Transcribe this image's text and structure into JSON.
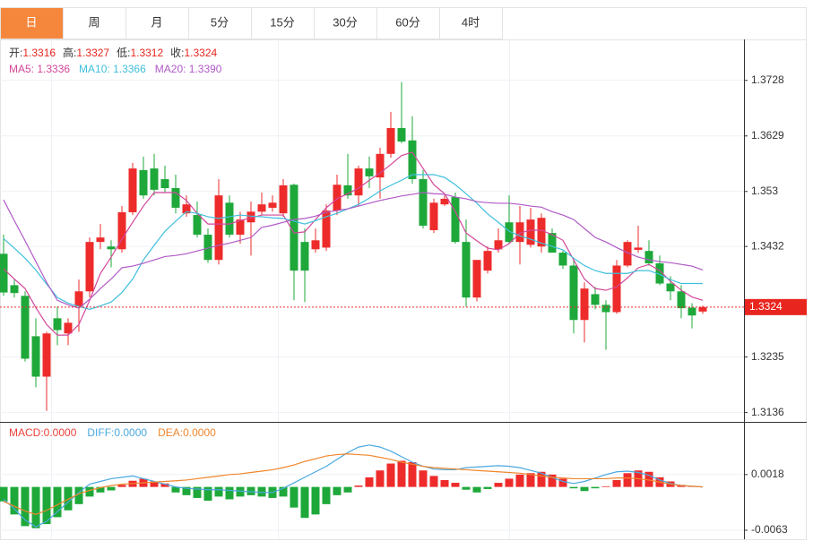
{
  "tabs": {
    "items": [
      "日",
      "周",
      "月",
      "5分",
      "15分",
      "30分",
      "60分",
      "4时"
    ],
    "active": 0
  },
  "chart_data": [
    {
      "type": "candlestick",
      "info": [
        {
          "label": "开:",
          "value": "1.3316"
        },
        {
          "label": "高:",
          "value": "1.3327"
        },
        {
          "label": "低:",
          "value": "1.3312"
        },
        {
          "label": "收:",
          "value": "1.3324"
        }
      ],
      "up_color": "#ee2b2b",
      "down_color": "#1ea83a",
      "open": [
        1.3419,
        1.3363,
        1.3344,
        1.3272,
        1.32,
        1.3304,
        1.3277,
        1.3325,
        1.3352,
        1.344,
        1.3432,
        1.3427,
        1.3493,
        1.3568,
        1.3571,
        1.3552,
        1.3536,
        1.3491,
        1.3488,
        1.3453,
        1.3408,
        1.351,
        1.3453,
        1.3475,
        1.3494,
        1.3501,
        1.3491,
        1.3542,
        1.344,
        1.3427,
        1.343,
        1.3496,
        1.3541,
        1.3523,
        1.3571,
        1.3555,
        1.3597,
        1.3643,
        1.3621,
        1.3552,
        1.3461,
        1.3507,
        1.352,
        1.344,
        1.3341,
        1.3389,
        1.3427,
        1.3475,
        1.344,
        1.3435,
        1.3432,
        1.3456,
        1.3421,
        1.3398,
        1.3301,
        1.3347,
        1.3328,
        1.3315,
        1.3398,
        1.3426,
        1.3424,
        1.3402,
        1.3366,
        1.3352,
        1.3323,
        1.3316
      ],
      "high": [
        1.3453,
        1.3373,
        1.3352,
        1.3304,
        1.328,
        1.3325,
        1.3304,
        1.3373,
        1.3448,
        1.3472,
        1.3443,
        1.3504,
        1.3581,
        1.3592,
        1.3597,
        1.3576,
        1.356,
        1.3523,
        1.3512,
        1.3464,
        1.3552,
        1.3523,
        1.3494,
        1.3512,
        1.3528,
        1.3523,
        1.3552,
        1.3544,
        1.3464,
        1.3464,
        1.3507,
        1.356,
        1.3597,
        1.3576,
        1.3592,
        1.3608,
        1.3672,
        1.3725,
        1.3664,
        1.3568,
        1.3517,
        1.3523,
        1.3528,
        1.348,
        1.3408,
        1.3432,
        1.3464,
        1.3523,
        1.3504,
        1.3501,
        1.3491,
        1.3464,
        1.3424,
        1.3408,
        1.3368,
        1.336,
        1.3336,
        1.3408,
        1.3443,
        1.3469,
        1.3443,
        1.3416,
        1.3379,
        1.3363,
        1.3331,
        1.3327
      ],
      "low": [
        1.3344,
        1.3341,
        1.3227,
        1.3181,
        1.3139,
        1.3256,
        1.3256,
        1.328,
        1.3341,
        1.3427,
        1.3395,
        1.3421,
        1.3488,
        1.3517,
        1.3523,
        1.3528,
        1.3491,
        1.3485,
        1.3448,
        1.3403,
        1.34,
        1.3448,
        1.3437,
        1.3416,
        1.3488,
        1.3494,
        1.3485,
        1.3336,
        1.3333,
        1.3421,
        1.3424,
        1.3488,
        1.3517,
        1.3504,
        1.3536,
        1.3517,
        1.359,
        1.3616,
        1.3544,
        1.3464,
        1.3456,
        1.3504,
        1.3437,
        1.3325,
        1.3334,
        1.3384,
        1.3421,
        1.3437,
        1.34,
        1.343,
        1.3421,
        1.3421,
        1.3392,
        1.3277,
        1.3261,
        1.332,
        1.3248,
        1.3312,
        1.3395,
        1.3421,
        1.3398,
        1.3363,
        1.3336,
        1.3304,
        1.3286,
        1.3312
      ],
      "close": [
        1.335,
        1.3349,
        1.3232,
        1.32,
        1.3277,
        1.3283,
        1.3296,
        1.3352,
        1.344,
        1.3448,
        1.3427,
        1.3493,
        1.3571,
        1.3523,
        1.3533,
        1.3536,
        1.3501,
        1.3507,
        1.3453,
        1.3408,
        1.3523,
        1.3453,
        1.348,
        1.3494,
        1.3507,
        1.351,
        1.3541,
        1.3389,
        1.3389,
        1.3443,
        1.3496,
        1.3542,
        1.3523,
        1.3571,
        1.3557,
        1.3597,
        1.3643,
        1.3619,
        1.3552,
        1.3469,
        1.351,
        1.3517,
        1.344,
        1.3341,
        1.3408,
        1.3424,
        1.3443,
        1.344,
        1.3475,
        1.348,
        1.3483,
        1.3421,
        1.3398,
        1.3301,
        1.3357,
        1.3328,
        1.3315,
        1.3398,
        1.344,
        1.343,
        1.3402,
        1.3366,
        1.3352,
        1.3322,
        1.3309,
        1.3324
      ],
      "series": [
        {
          "label": "MA5: 1.3336",
          "color": "#d2479a",
          "values": [
            1.3392,
            1.3374,
            1.3357,
            1.3323,
            1.3293,
            1.3274,
            1.3274,
            1.3293,
            1.3336,
            1.3384,
            1.3413,
            1.3445,
            1.3475,
            1.3504,
            1.3528,
            1.3528,
            1.3528,
            1.3514,
            1.3491,
            1.3472,
            1.3472,
            1.3472,
            1.3478,
            1.3483,
            1.3488,
            1.3488,
            1.3488,
            1.3456,
            1.3458,
            1.348,
            1.3501,
            1.3517,
            1.3526,
            1.3536,
            1.355,
            1.3563,
            1.3578,
            1.3594,
            1.36,
            1.3571,
            1.3542,
            1.3526,
            1.3494,
            1.3456,
            1.3442,
            1.3429,
            1.3426,
            1.3437,
            1.3456,
            1.3461,
            1.3461,
            1.3453,
            1.3443,
            1.3408,
            1.3374,
            1.3357,
            1.3354,
            1.336,
            1.3376,
            1.3394,
            1.34,
            1.3389,
            1.337,
            1.3354,
            1.3342,
            1.3336
          ]
        },
        {
          "label": "MA10: 1.3366",
          "color": "#3fbfdc",
          "values": [
            1.3446,
            1.3429,
            1.3411,
            1.339,
            1.3365,
            1.3341,
            1.3331,
            1.3325,
            1.332,
            1.3326,
            1.3333,
            1.335,
            1.3374,
            1.3408,
            1.3434,
            1.3459,
            1.3477,
            1.3494,
            1.3491,
            1.3485,
            1.3482,
            1.3485,
            1.3488,
            1.3486,
            1.3485,
            1.3483,
            1.3482,
            1.3477,
            1.3472,
            1.3478,
            1.3485,
            1.3491,
            1.3499,
            1.3507,
            1.3518,
            1.3531,
            1.3541,
            1.355,
            1.356,
            1.356,
            1.356,
            1.3555,
            1.3542,
            1.3526,
            1.3509,
            1.349,
            1.3475,
            1.3459,
            1.3451,
            1.3445,
            1.3438,
            1.3432,
            1.3426,
            1.3411,
            1.3398,
            1.3389,
            1.3384,
            1.3384,
            1.3384,
            1.3389,
            1.3389,
            1.3382,
            1.3373,
            1.3366,
            1.3366,
            1.3366
          ]
        },
        {
          "label": "MA20: 1.3390",
          "color": "#b05ac6",
          "values": [
            1.3515,
            1.3478,
            1.3442,
            1.3405,
            1.3368,
            1.3336,
            1.3328,
            1.3322,
            1.3338,
            1.3357,
            1.3374,
            1.3394,
            1.3397,
            1.3402,
            1.3408,
            1.3414,
            1.3416,
            1.3419,
            1.3424,
            1.3429,
            1.3434,
            1.3438,
            1.3443,
            1.3448,
            1.3466,
            1.347,
            1.3475,
            1.348,
            1.3482,
            1.3486,
            1.3493,
            1.3496,
            1.3499,
            1.3504,
            1.3509,
            1.3514,
            1.3518,
            1.3522,
            1.3525,
            1.3528,
            1.3526,
            1.3525,
            1.352,
            1.3517,
            1.3512,
            1.351,
            1.3509,
            1.3509,
            1.3507,
            1.3504,
            1.3502,
            1.3494,
            1.3488,
            1.348,
            1.3464,
            1.3448,
            1.344,
            1.343,
            1.3421,
            1.3413,
            1.3408,
            1.3405,
            1.3403,
            1.34,
            1.3397,
            1.339
          ]
        }
      ],
      "ylim": [
        1.3121,
        1.3801
      ],
      "yticks": [
        1.3136,
        1.3235,
        1.3432,
        1.353,
        1.3629,
        1.3728
      ],
      "grid": true
    },
    {
      "type": "macd",
      "legend": [
        {
          "label": "MACD:0.0000",
          "color": "#e8413a"
        },
        {
          "label": "DIFF:0.0000",
          "color": "#4aa8e0"
        },
        {
          "label": "DEA:0.0000",
          "color": "#f0862c"
        }
      ],
      "values": [
        -0.0021,
        -0.004,
        -0.0057,
        -0.006,
        -0.0054,
        -0.0044,
        -0.0034,
        -0.0025,
        -0.0014,
        -0.0008,
        -0.0005,
        0.0003,
        0.0009,
        0.0012,
        0.0008,
        0.0005,
        -0.0008,
        -0.0012,
        -0.0016,
        -0.002,
        -0.0014,
        -0.0018,
        -0.0014,
        -0.0012,
        -0.0014,
        -0.0016,
        -0.0014,
        -0.003,
        -0.0045,
        -0.004,
        -0.0025,
        -0.0012,
        -0.0008,
        0.0002,
        0.0014,
        0.0024,
        0.0034,
        0.0038,
        0.0036,
        0.0024,
        0.0016,
        0.001,
        0.0006,
        -0.0004,
        -0.0008,
        -0.0003,
        0.0006,
        0.0012,
        0.0018,
        0.002,
        0.0022,
        0.0018,
        0.0012,
        -0.0002,
        -0.0006,
        -0.0002,
        0.0001,
        0.001,
        0.002,
        0.0024,
        0.0022,
        0.0014,
        0.0008,
        0.0003,
        0.0001,
        0
      ],
      "up_color": "#ee2b2b",
      "down_color": "#1ea83a",
      "series": [
        {
          "name": "DIFF",
          "color": "#4aa8e0",
          "values": [
            -0.0018,
            -0.0032,
            -0.0048,
            -0.0058,
            -0.005,
            -0.0036,
            -0.0022,
            -0.0008,
            0.0004,
            0.0008,
            0.0012,
            0.0014,
            0.0016,
            0.0012,
            0.0008,
            0.0004,
            0,
            -0.0002,
            -0.0003,
            -0.0004,
            -0.0004,
            -0.0005,
            -0.0006,
            -0.0007,
            -0.0008,
            -0.0008,
            -0.0002,
            0.0006,
            0.0014,
            0.0022,
            0.003,
            0.004,
            0.005,
            0.0058,
            0.0061,
            0.0058,
            0.0052,
            0.0044,
            0.0036,
            0.003,
            0.0026,
            0.0025,
            0.0025,
            0.0028,
            0.0029,
            0.003,
            0.0031,
            0.003,
            0.0028,
            0.0024,
            0.002,
            0.0014,
            0.0008,
            0.0005,
            0.0008,
            0.0013,
            0.0018,
            0.0022,
            0.0023,
            0.0021,
            0.0017,
            0.001,
            0.0005,
            0.0002,
            0.0001,
            0
          ]
        },
        {
          "name": "DEA",
          "color": "#f0862c",
          "values": [
            -0.0021,
            -0.0028,
            -0.0035,
            -0.004,
            -0.0034,
            -0.0026,
            -0.0018,
            -0.001,
            -0.0005,
            -0.0001,
            0.0002,
            0.0004,
            0.0005,
            0.0006,
            0.0007,
            0.0008,
            0.0009,
            0.001,
            0.0012,
            0.0014,
            0.0016,
            0.0018,
            0.0019,
            0.0021,
            0.0023,
            0.0025,
            0.0028,
            0.0032,
            0.0037,
            0.0041,
            0.0045,
            0.0047,
            0.0048,
            0.0047,
            0.0046,
            0.0043,
            0.004,
            0.0036,
            0.0033,
            0.003,
            0.0028,
            0.0027,
            0.0026,
            0.0025,
            0.0024,
            0.0023,
            0.0022,
            0.0021,
            0.002,
            0.0018,
            0.0016,
            0.0014,
            0.0013,
            0.0012,
            0.0012,
            0.0012,
            0.0012,
            0.0013,
            0.0013,
            0.0012,
            0.001,
            0.0007,
            0.0004,
            0.0002,
            0.0001,
            0
          ]
        }
      ],
      "ylim": [
        -0.0076,
        0.0092
      ],
      "yticks": [
        -0.0063,
        0.0018
      ],
      "grid": true
    }
  ]
}
